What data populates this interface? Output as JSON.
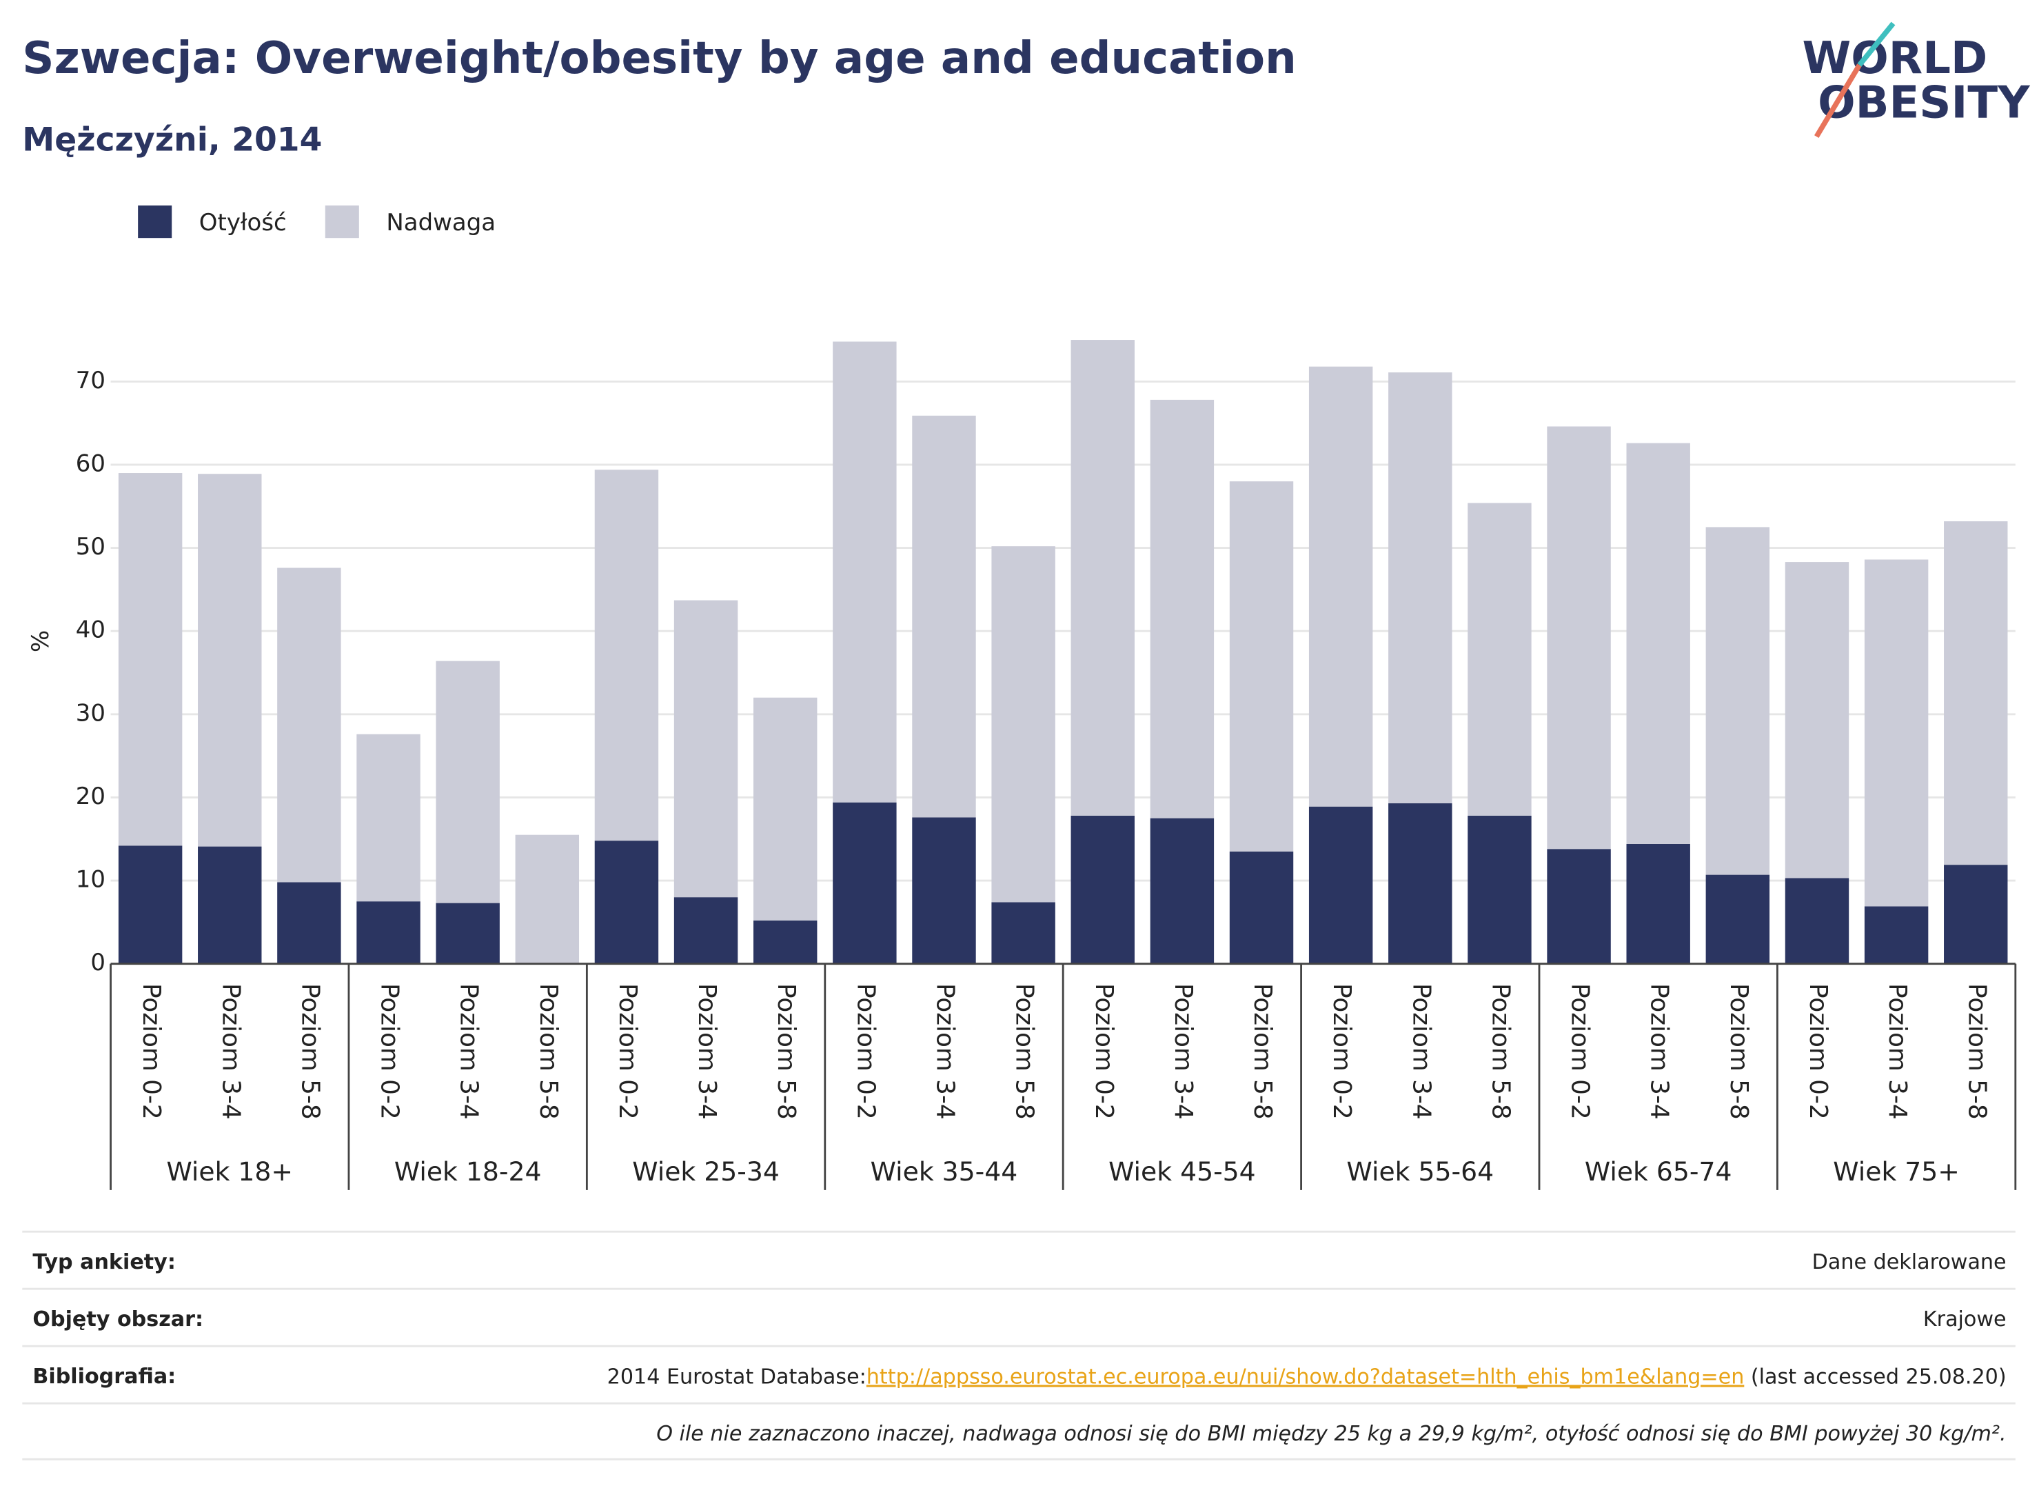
{
  "chart_data": {
    "type": "stacked-bar",
    "title": "Szwecja: Overweight/obesity by age and education",
    "subtitle": "Mężczyźni, 2014",
    "y_label": "%",
    "groups": [
      "Wiek 18+",
      "Wiek 18-24",
      "Wiek 25-34",
      "Wiek 35-44",
      "Wiek 45-54",
      "Wiek 55-64",
      "Wiek 65-74",
      "Wiek 75+"
    ],
    "categories": [
      "Poziom 0-2",
      "Poziom 3-4",
      "Poziom 5-8",
      "Poziom 0-2",
      "Poziom 3-4",
      "Poziom 5-8",
      "Poziom 0-2",
      "Poziom 3-4",
      "Poziom 5-8",
      "Poziom 0-2",
      "Poziom 3-4",
      "Poziom 5-8",
      "Poziom 0-2",
      "Poziom 3-4",
      "Poziom 5-8",
      "Poziom 0-2",
      "Poziom 3-4",
      "Poziom 5-8",
      "Poziom 0-2",
      "Poziom 3-4",
      "Poziom 5-8",
      "Poziom 0-2",
      "Poziom 3-4",
      "Poziom 5-8"
    ],
    "series": [
      {
        "name": "Otyłość",
        "color": "#2b3561",
        "values": [
          14.2,
          14.1,
          9.8,
          7.5,
          7.3,
          null,
          14.8,
          8.0,
          5.2,
          19.4,
          17.6,
          7.4,
          17.8,
          17.5,
          13.5,
          18.9,
          19.3,
          17.8,
          13.8,
          14.4,
          10.7,
          10.3,
          6.9,
          11.9
        ]
      },
      {
        "name": "Nadwaga",
        "color": "#cbccd8",
        "values": [
          44.8,
          44.8,
          37.8,
          20.1,
          29.1,
          15.5,
          44.6,
          35.7,
          26.8,
          55.4,
          48.3,
          42.8,
          57.2,
          50.3,
          44.5,
          52.9,
          51.8,
          37.6,
          50.8,
          48.2,
          41.8,
          38.0,
          41.7,
          41.3
        ]
      }
    ],
    "ylim": [
      0,
      76
    ],
    "yticks": [
      0,
      10,
      20,
      30,
      40,
      50,
      60,
      70
    ],
    "grid": true,
    "legend": "top-left"
  },
  "logo": [
    "WORLD",
    "OBESITY"
  ],
  "footer": {
    "rows": [
      {
        "label": "Typ ankiety:",
        "value": "Dane deklarowane"
      },
      {
        "label": "Objęty obszar:",
        "value": "Krajowe"
      },
      {
        "label": "Bibliografia:",
        "prefix": "2014 Eurostat Database:",
        "link": "http://appsso.eurostat.ec.europa.eu/nui/show.do?dataset=hlth_ehis_bm1e&lang=en",
        "suffix": " (last accessed 25.08.20)"
      }
    ],
    "note": "O ile nie zaznaczono inaczej, nadwaga odnosi się do BMI między 25 kg a 29,9 kg/m², otyłość odnosi się do BMI powyżej 30 kg/m²."
  }
}
